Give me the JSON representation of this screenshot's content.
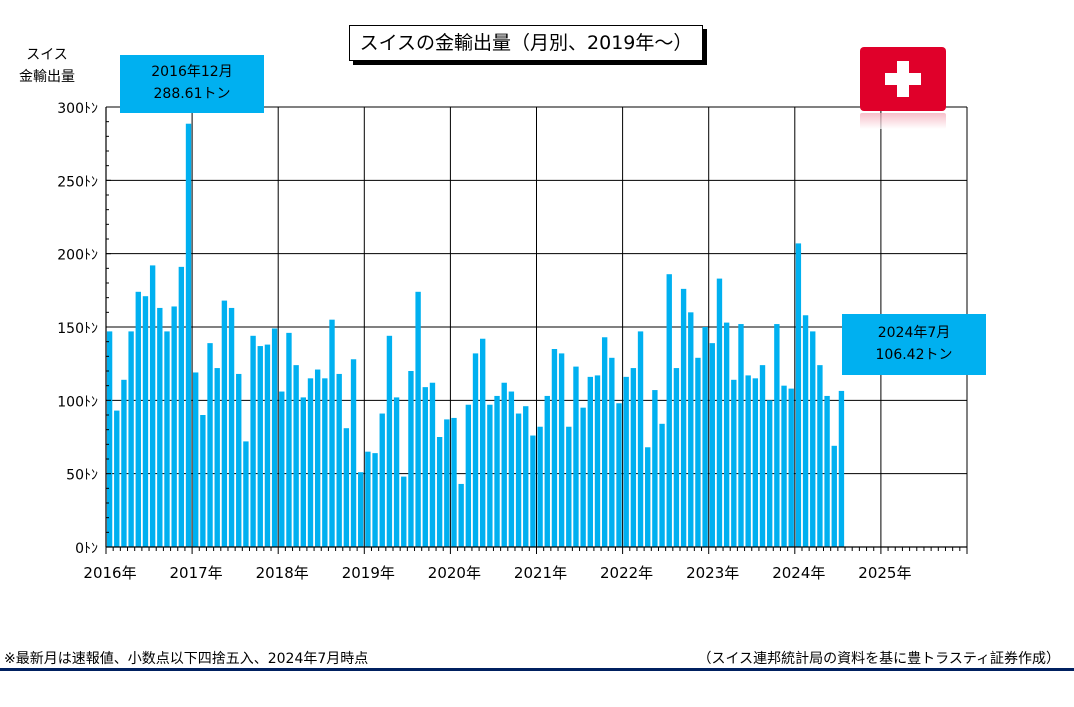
{
  "title": "スイスの金輸出量（月別、2019年～）",
  "ylabel_lines": [
    "スイス",
    "金輸出量"
  ],
  "callouts": {
    "left": {
      "line1": "2016年12月",
      "line2": "288.61トン"
    },
    "right": {
      "line1": "2024年7月",
      "line2": "106.42トン"
    }
  },
  "flag_icon": "swiss-flag-icon",
  "note": "※最新月は速報値、小数点以下四捨五入、2024年7月時点",
  "source": "（スイス連邦統計局の資料を基に豊トラスティ証券作成）",
  "colors": {
    "bar": "#00b0f0",
    "callout": "#00b0f0",
    "flag": "#e0002a",
    "rule": "#002060"
  },
  "chart_data": {
    "type": "bar",
    "title": "スイスの金輸出量（月別、2019年～）",
    "ylabel": "スイス 金輸出量",
    "unit": "トン",
    "ylim": [
      0,
      300
    ],
    "yticks": [
      0,
      50,
      100,
      150,
      200,
      250,
      300
    ],
    "ytick_labels": [
      "0ﾄﾝ",
      "50ﾄﾝ",
      "100ﾄﾝ",
      "150ﾄﾝ",
      "200ﾄﾝ",
      "250ﾄﾝ",
      "300ﾄﾝ"
    ],
    "xtick_labels": [
      "2016年",
      "2017年",
      "2018年",
      "2019年",
      "2020年",
      "2021年",
      "2022年",
      "2023年",
      "2024年",
      "2025年"
    ],
    "x_start": "2016-01",
    "x_end": "2025-12",
    "grid": true,
    "values": [
      147,
      93,
      114,
      147,
      174,
      171,
      192,
      163,
      147,
      164,
      191,
      288.61,
      119,
      90,
      139,
      122,
      168,
      163,
      118,
      72,
      144,
      137,
      138,
      149,
      106,
      146,
      124,
      102,
      115,
      121,
      115,
      155,
      118,
      81,
      128,
      51,
      65,
      64,
      91,
      144,
      102,
      48,
      120,
      174,
      109,
      112,
      75,
      87,
      88,
      43,
      97,
      132,
      142,
      97,
      103,
      112,
      106,
      91,
      96,
      76,
      82,
      103,
      135,
      132,
      82,
      123,
      95,
      116,
      117,
      143,
      129,
      98,
      116,
      122,
      147,
      68,
      107,
      84,
      186,
      122,
      176,
      160,
      129,
      150,
      139,
      183,
      153,
      114,
      152,
      117,
      115,
      124,
      100,
      152,
      110,
      108,
      207,
      158,
      147,
      124,
      103,
      69,
      106.42
    ]
  }
}
